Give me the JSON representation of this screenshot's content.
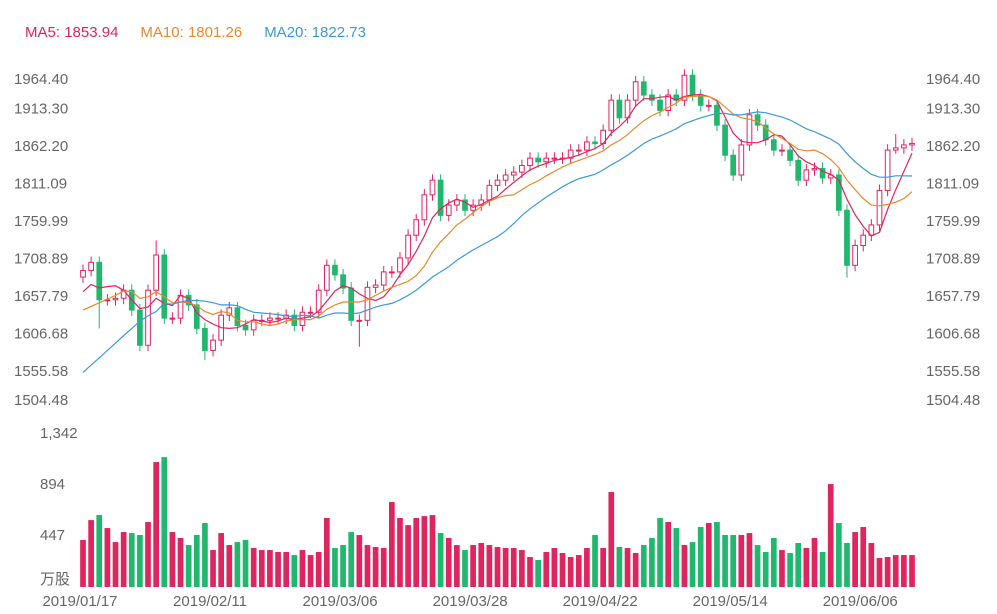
{
  "chart_data": {
    "type": "candlestick",
    "categories": [
      "2019/01/17",
      null,
      null,
      null,
      null,
      null,
      null,
      null,
      null,
      null,
      null,
      null,
      null,
      null,
      null,
      null,
      "2019/02/11",
      null,
      null,
      null,
      null,
      null,
      null,
      null,
      null,
      null,
      null,
      null,
      null,
      null,
      null,
      null,
      "2019/03/06",
      null,
      null,
      null,
      null,
      null,
      null,
      null,
      null,
      null,
      null,
      null,
      null,
      null,
      null,
      null,
      "2019/03/28",
      null,
      null,
      null,
      null,
      null,
      null,
      null,
      null,
      null,
      null,
      null,
      null,
      null,
      null,
      null,
      "2019/04/22",
      null,
      null,
      null,
      null,
      null,
      null,
      null,
      null,
      null,
      null,
      null,
      null,
      null,
      null,
      null,
      "2019/05/14",
      null,
      null,
      null,
      null,
      null,
      null,
      null,
      null,
      null,
      null,
      null,
      null,
      null,
      null,
      null,
      "2019/06/06",
      null,
      null,
      null,
      null,
      null,
      null
    ],
    "open": [
      1685,
      1694,
      1705,
      1654,
      1654,
      1656,
      1667,
      1640,
      1592,
      1667,
      1715,
      1629,
      1629,
      1660,
      1647,
      1615,
      1585,
      1599,
      1633,
      1643,
      1619,
      1613,
      1626,
      1626,
      1629,
      1629,
      1633,
      1619,
      1637,
      1637,
      1667,
      1701,
      1688,
      1670,
      1626,
      1626,
      1671,
      1674,
      1692,
      1692,
      1711,
      1742,
      1763,
      1797,
      1817,
      1769,
      1783,
      1790,
      1776,
      1783,
      1790,
      1810,
      1817,
      1824,
      1828,
      1837,
      1847,
      1842,
      1847,
      1847,
      1847,
      1858,
      1858,
      1869,
      1867,
      1885,
      1926,
      1902,
      1926,
      1951,
      1933,
      1926,
      1912,
      1933,
      1926,
      1960,
      1933,
      1919,
      1919,
      1892,
      1851,
      1824,
      1865,
      1906,
      1892,
      1872,
      1858,
      1858,
      1844,
      1817,
      1831,
      1833,
      1820,
      1824,
      1776,
      1701,
      1728,
      1742,
      1756,
      1803,
      1858,
      1861,
      1865
    ],
    "high": [
      1702,
      1713,
      1713,
      1662,
      1664,
      1675,
      1675,
      1648,
      1675,
      1735,
      1723,
      1637,
      1668,
      1668,
      1655,
      1623,
      1607,
      1641,
      1651,
      1651,
      1627,
      1634,
      1634,
      1637,
      1637,
      1641,
      1641,
      1645,
      1645,
      1675,
      1709,
      1709,
      1696,
      1678,
      1634,
      1679,
      1682,
      1700,
      1700,
      1719,
      1750,
      1771,
      1805,
      1825,
      1825,
      1791,
      1798,
      1798,
      1791,
      1798,
      1818,
      1825,
      1832,
      1836,
      1845,
      1855,
      1855,
      1855,
      1855,
      1855,
      1866,
      1866,
      1877,
      1877,
      1893,
      1934,
      1934,
      1934,
      1959,
      1959,
      1941,
      1934,
      1941,
      1941,
      1968,
      1968,
      1941,
      1927,
      1927,
      1900,
      1859,
      1873,
      1914,
      1914,
      1900,
      1880,
      1866,
      1866,
      1852,
      1839,
      1841,
      1841,
      1832,
      1832,
      1784,
      1736,
      1750,
      1764,
      1811,
      1866,
      1880,
      1873,
      1875
    ],
    "low": [
      1677,
      1686,
      1615,
      1646,
      1646,
      1648,
      1632,
      1584,
      1584,
      1659,
      1621,
      1621,
      1621,
      1639,
      1607,
      1572,
      1577,
      1591,
      1625,
      1611,
      1605,
      1605,
      1618,
      1618,
      1621,
      1621,
      1611,
      1611,
      1629,
      1629,
      1659,
      1680,
      1662,
      1618,
      1590,
      1618,
      1663,
      1666,
      1684,
      1684,
      1703,
      1734,
      1755,
      1789,
      1761,
      1761,
      1775,
      1768,
      1768,
      1775,
      1782,
      1802,
      1809,
      1816,
      1820,
      1829,
      1834,
      1834,
      1839,
      1839,
      1839,
      1850,
      1850,
      1859,
      1859,
      1877,
      1894,
      1894,
      1918,
      1925,
      1918,
      1904,
      1904,
      1918,
      1918,
      1925,
      1911,
      1911,
      1884,
      1843,
      1816,
      1816,
      1857,
      1884,
      1864,
      1850,
      1850,
      1836,
      1809,
      1809,
      1823,
      1812,
      1812,
      1768,
      1684,
      1693,
      1720,
      1734,
      1748,
      1795,
      1853,
      1853,
      1857
    ],
    "close": [
      1694,
      1705,
      1654,
      1654,
      1656,
      1667,
      1640,
      1592,
      1667,
      1715,
      1629,
      1629,
      1660,
      1647,
      1615,
      1585,
      1599,
      1633,
      1643,
      1619,
      1613,
      1626,
      1626,
      1629,
      1629,
      1633,
      1619,
      1637,
      1637,
      1667,
      1701,
      1688,
      1670,
      1626,
      1626,
      1671,
      1674,
      1692,
      1692,
      1711,
      1742,
      1763,
      1797,
      1817,
      1769,
      1783,
      1790,
      1776,
      1783,
      1790,
      1810,
      1817,
      1824,
      1828,
      1837,
      1847,
      1842,
      1847,
      1847,
      1847,
      1858,
      1858,
      1869,
      1867,
      1885,
      1926,
      1902,
      1926,
      1951,
      1933,
      1926,
      1912,
      1933,
      1926,
      1960,
      1933,
      1919,
      1919,
      1892,
      1851,
      1824,
      1865,
      1906,
      1892,
      1872,
      1858,
      1858,
      1844,
      1817,
      1831,
      1833,
      1820,
      1824,
      1776,
      1701,
      1728,
      1742,
      1756,
      1803,
      1858,
      1861,
      1865,
      1867
    ],
    "up_color": "#e0245e",
    "down_color": "#1fb86c",
    "ylim": [
      1504.48,
      1964.4
    ],
    "yticks": [
      {
        "value": 1964.4,
        "label": "1964.40"
      },
      {
        "value": 1913.3,
        "label": "1913.30"
      },
      {
        "value": 1862.2,
        "label": "1862.20"
      },
      1811.09,
      1759.99,
      1708.89,
      1657.79,
      1606.68,
      1555.58,
      1504.48
    ],
    "series": [
      {
        "name": "MA5",
        "color": "#e0245e",
        "values": [
          1665,
          1675,
          1670,
          1672,
          1673,
          1667,
          1654,
          1642,
          1644,
          1656,
          1649,
          1646,
          1660,
          1656,
          1636,
          1627,
          1621,
          1616,
          1615,
          1616,
          1621,
          1627,
          1625,
          1623,
          1625,
          1629,
          1627,
          1629,
          1631,
          1639,
          1652,
          1666,
          1673,
          1670,
          1662,
          1656,
          1653,
          1658,
          1671,
          1688,
          1702,
          1720,
          1741,
          1766,
          1778,
          1786,
          1791,
          1787,
          1780,
          1784,
          1790,
          1795,
          1805,
          1814,
          1823,
          1831,
          1836,
          1840,
          1844,
          1846,
          1848,
          1851,
          1856,
          1860,
          1867,
          1881,
          1890,
          1901,
          1918,
          1928,
          1928,
          1930,
          1931,
          1926,
          1931,
          1933,
          1934,
          1931,
          1925,
          1903,
          1881,
          1870,
          1868,
          1868,
          1872,
          1879,
          1877,
          1865,
          1850,
          1842,
          1837,
          1829,
          1825,
          1817,
          1791,
          1770,
          1754,
          1741,
          1746,
          1777,
          1804,
          1829,
          1853.94
        ]
      },
      {
        "name": "MA10",
        "color": "#e8892c",
        "values": [
          1640,
          1645,
          1650,
          1655,
          1660,
          1666,
          1665,
          1656,
          1658,
          1665,
          1658,
          1650,
          1651,
          1650,
          1646,
          1638,
          1634,
          1638,
          1636,
          1626,
          1624,
          1624,
          1621,
          1619,
          1621,
          1625,
          1627,
          1627,
          1627,
          1632,
          1641,
          1647,
          1651,
          1651,
          1651,
          1654,
          1660,
          1666,
          1671,
          1675,
          1679,
          1687,
          1700,
          1719,
          1733,
          1744,
          1756,
          1764,
          1773,
          1781,
          1788,
          1793,
          1796,
          1797,
          1804,
          1811,
          1816,
          1823,
          1829,
          1835,
          1840,
          1844,
          1848,
          1852,
          1857,
          1865,
          1871,
          1879,
          1889,
          1898,
          1905,
          1910,
          1916,
          1922,
          1930,
          1931,
          1932,
          1931,
          1926,
          1917,
          1907,
          1902,
          1900,
          1897,
          1888,
          1880,
          1874,
          1867,
          1859,
          1857,
          1858,
          1853,
          1845,
          1834,
          1817,
          1804,
          1792,
          1783,
          1782,
          1784,
          1787,
          1792,
          1801.26
        ]
      },
      {
        "name": "MA20",
        "color": "#3b9ad9",
        "values": [
          1555,
          1565,
          1575,
          1585,
          1595,
          1605,
          1615,
          1625,
          1632,
          1638,
          1649,
          1648,
          1651,
          1653,
          1653,
          1652,
          1650,
          1647,
          1647,
          1646,
          1641,
          1637,
          1636,
          1635,
          1634,
          1632,
          1631,
          1633,
          1632,
          1629,
          1633,
          1636,
          1636,
          1635,
          1636,
          1640,
          1644,
          1647,
          1649,
          1654,
          1660,
          1667,
          1676,
          1685,
          1692,
          1699,
          1708,
          1715,
          1722,
          1728,
          1734,
          1740,
          1748,
          1758,
          1769,
          1778,
          1786,
          1794,
          1801,
          1808,
          1814,
          1819,
          1822,
          1825,
          1831,
          1838,
          1844,
          1851,
          1859,
          1867,
          1873,
          1877,
          1882,
          1887,
          1894,
          1898,
          1902,
          1905,
          1908,
          1908,
          1906,
          1906,
          1908,
          1910,
          1909,
          1906,
          1903,
          1899,
          1893,
          1887,
          1883,
          1878,
          1873,
          1866,
          1853,
          1842,
          1833,
          1825,
          1821,
          1821,
          1823,
          1823,
          1822.73
        ]
      }
    ],
    "volume": {
      "values": [
        412,
        587,
        631,
        517,
        394,
        482,
        473,
        456,
        570,
        1096,
        1139,
        482,
        430,
        368,
        456,
        561,
        324,
        473,
        368,
        394,
        412,
        342,
        324,
        324,
        307,
        307,
        280,
        324,
        280,
        307,
        605,
        342,
        368,
        482,
        456,
        368,
        351,
        342,
        745,
        605,
        543,
        605,
        622,
        631,
        473,
        430,
        368,
        324,
        368,
        386,
        368,
        351,
        342,
        342,
        324,
        263,
        237,
        307,
        342,
        298,
        263,
        280,
        342,
        456,
        342,
        833,
        351,
        342,
        298,
        368,
        430,
        605,
        570,
        517,
        368,
        394,
        526,
        561,
        570,
        456,
        456,
        456,
        473,
        368,
        307,
        430,
        324,
        298,
        386,
        342,
        430,
        307,
        903,
        561,
        386,
        482,
        526,
        386,
        254,
        263,
        280,
        280,
        280
      ],
      "ylim": [
        0,
        1342
      ],
      "yticks": [
        {
          "value": 0,
          "label": "万股"
        },
        447,
        894,
        {
          "value": 1342,
          "label": "1,342"
        }
      ]
    }
  }
}
